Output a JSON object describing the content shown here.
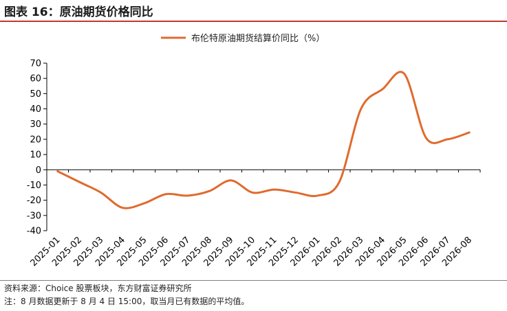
{
  "figure": {
    "title": "图表 16：原油期货价格同比",
    "source": "资料来源：Choice 股票板块，东方财富证券研究所",
    "note": "注：8 月数据更新于 8 月 4 日 15:00，取当月已有数据的平均值。",
    "accent_color": "#c0392b"
  },
  "chart_data": {
    "type": "line",
    "categories": [
      "2025-01",
      "2025-02",
      "2025-03",
      "2025-04",
      "2025-05",
      "2025-06",
      "2025-07",
      "2025-08",
      "2025-09",
      "2025-10",
      "2025-11",
      "2025-12",
      "2026-01",
      "2026-02",
      "2026-03",
      "2026-04",
      "2026-05",
      "2026-06",
      "2026-07",
      "2026-08"
    ],
    "series": [
      {
        "name": "布伦特原油期货结算价同比（%）",
        "color": "#e06a2e",
        "values": [
          -1,
          -8,
          -15,
          -25,
          -22,
          -16,
          -17,
          -14,
          -7,
          -15,
          -13,
          -15,
          -17,
          -8,
          40,
          53,
          63,
          21,
          20,
          24.5
        ]
      }
    ],
    "ylim": [
      -40,
      70
    ],
    "yticks": [
      -40,
      -30,
      -20,
      -10,
      0,
      10,
      20,
      30,
      40,
      50,
      60,
      70
    ],
    "xlabel": "",
    "ylabel": "",
    "legend_position": "top-center",
    "grid": false
  }
}
